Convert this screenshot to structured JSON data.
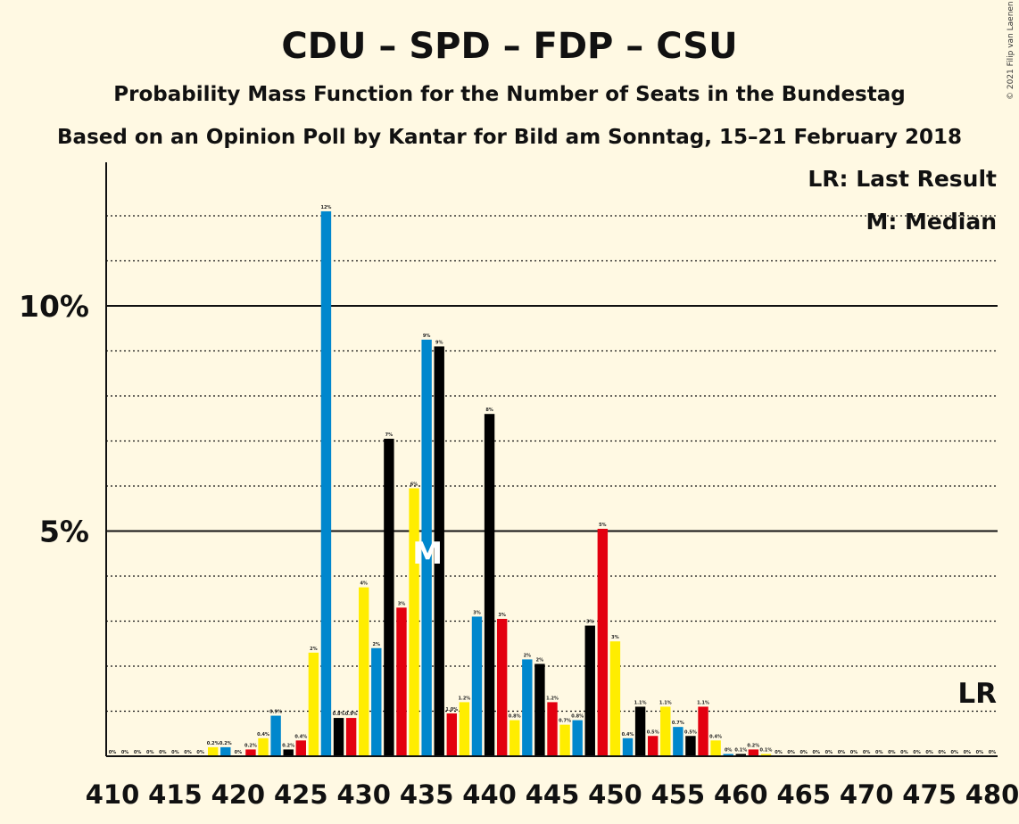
{
  "title": "CDU – SPD – FDP – CSU",
  "subtitle": "Probability Mass Function for the Number of Seats in the Bundestag",
  "subtitle2": "Based on an Opinion Poll by Kantar for Bild am Sonntag, 15–21 February 2018",
  "copyright": "© 2021 Filip van Laenen",
  "legend": {
    "lr": "LR: Last Result",
    "median": "M: Median"
  },
  "markers": {
    "median_label": "M",
    "lr_label": "LR",
    "median_seat": 435,
    "last_result_seat": 480
  },
  "colors": {
    "background": "#FFF9E3",
    "cdu": "#000000",
    "spd": "#E3000F",
    "fdp": "#FFED00",
    "csu": "#0087CD"
  },
  "chart_data": {
    "type": "bar",
    "xlabel": "",
    "ylabel": "",
    "xlim": [
      410,
      480
    ],
    "ylim": [
      0,
      13
    ],
    "grid": "dotted every 1%, solid at 5% and 10%",
    "yticks": [
      {
        "value": 5,
        "label": "5%"
      },
      {
        "value": 10,
        "label": "10%"
      }
    ],
    "xticks": [
      410,
      415,
      420,
      425,
      430,
      435,
      440,
      445,
      450,
      455,
      460,
      465,
      470,
      475,
      480
    ],
    "bars": [
      {
        "seat": 410,
        "value": 0,
        "label": "0%",
        "color": "#FFED00"
      },
      {
        "seat": 411,
        "value": 0,
        "label": "0%",
        "color": "#0087CD"
      },
      {
        "seat": 412,
        "value": 0,
        "label": "0%",
        "color": "#000000"
      },
      {
        "seat": 413,
        "value": 0,
        "label": "0%",
        "color": "#E3000F"
      },
      {
        "seat": 414,
        "value": 0,
        "label": "0%",
        "color": "#FFED00"
      },
      {
        "seat": 415,
        "value": 0,
        "label": "0%",
        "color": "#0087CD"
      },
      {
        "seat": 416,
        "value": 0,
        "label": "0%",
        "color": "#000000"
      },
      {
        "seat": 417,
        "value": 0,
        "label": "0%",
        "color": "#E3000F"
      },
      {
        "seat": 418,
        "value": 0.2,
        "label": "0.2%",
        "color": "#FFED00"
      },
      {
        "seat": 419,
        "value": 0.2,
        "label": "0.2%",
        "color": "#0087CD"
      },
      {
        "seat": 420,
        "value": 0,
        "label": "0%",
        "color": "#000000"
      },
      {
        "seat": 421,
        "value": 0.15,
        "label": "0.2%",
        "color": "#E3000F"
      },
      {
        "seat": 422,
        "value": 0.4,
        "label": "0.4%",
        "color": "#FFED00"
      },
      {
        "seat": 423,
        "value": 0.9,
        "label": "0.9%",
        "color": "#0087CD"
      },
      {
        "seat": 424,
        "value": 0.15,
        "label": "0.2%",
        "color": "#000000"
      },
      {
        "seat": 425,
        "value": 0.35,
        "label": "0.4%",
        "color": "#E3000F"
      },
      {
        "seat": 426,
        "value": 2.3,
        "label": "2%",
        "color": "#FFED00"
      },
      {
        "seat": 427,
        "value": 12.1,
        "label": "12%",
        "color": "#0087CD"
      },
      {
        "seat": 428,
        "value": 0.85,
        "label": "0.8%",
        "color": "#000000"
      },
      {
        "seat": 429,
        "value": 0.85,
        "label": "0.9%",
        "color": "#E3000F"
      },
      {
        "seat": 430,
        "value": 3.75,
        "label": "4%",
        "color": "#FFED00"
      },
      {
        "seat": 431,
        "value": 2.4,
        "label": "2%",
        "color": "#0087CD"
      },
      {
        "seat": 432,
        "value": 7.05,
        "label": "7%",
        "color": "#000000"
      },
      {
        "seat": 433,
        "value": 3.3,
        "label": "3%",
        "color": "#E3000F"
      },
      {
        "seat": 434,
        "value": 5.95,
        "label": "6%",
        "color": "#FFED00"
      },
      {
        "seat": 435,
        "value": 9.25,
        "label": "9%",
        "color": "#0087CD"
      },
      {
        "seat": 436,
        "value": 9.1,
        "label": "9%",
        "color": "#000000"
      },
      {
        "seat": 437,
        "value": 0.95,
        "label": "1.0%",
        "color": "#E3000F"
      },
      {
        "seat": 438,
        "value": 1.2,
        "label": "1.2%",
        "color": "#FFED00"
      },
      {
        "seat": 439,
        "value": 3.1,
        "label": "3%",
        "color": "#0087CD"
      },
      {
        "seat": 440,
        "value": 7.6,
        "label": "8%",
        "color": "#000000"
      },
      {
        "seat": 441,
        "value": 3.05,
        "label": "3%",
        "color": "#E3000F"
      },
      {
        "seat": 442,
        "value": 0.8,
        "label": "0.8%",
        "color": "#FFED00"
      },
      {
        "seat": 443,
        "value": 2.15,
        "label": "2%",
        "color": "#0087CD"
      },
      {
        "seat": 444,
        "value": 2.05,
        "label": "2%",
        "color": "#000000"
      },
      {
        "seat": 445,
        "value": 1.2,
        "label": "1.2%",
        "color": "#E3000F"
      },
      {
        "seat": 446,
        "value": 0.7,
        "label": "0.7%",
        "color": "#FFED00"
      },
      {
        "seat": 447,
        "value": 0.8,
        "label": "0.8%",
        "color": "#0087CD"
      },
      {
        "seat": 448,
        "value": 2.9,
        "label": "3%",
        "color": "#000000"
      },
      {
        "seat": 449,
        "value": 5.05,
        "label": "5%",
        "color": "#E3000F"
      },
      {
        "seat": 450,
        "value": 2.55,
        "label": "3%",
        "color": "#FFED00"
      },
      {
        "seat": 451,
        "value": 0.4,
        "label": "0.4%",
        "color": "#0087CD"
      },
      {
        "seat": 452,
        "value": 1.1,
        "label": "1.1%",
        "color": "#000000"
      },
      {
        "seat": 453,
        "value": 0.45,
        "label": "0.5%",
        "color": "#E3000F"
      },
      {
        "seat": 454,
        "value": 1.1,
        "label": "1.1%",
        "color": "#FFED00"
      },
      {
        "seat": 455,
        "value": 0.65,
        "label": "0.7%",
        "color": "#0087CD"
      },
      {
        "seat": 456,
        "value": 0.45,
        "label": "0.5%",
        "color": "#000000"
      },
      {
        "seat": 457,
        "value": 1.1,
        "label": "1.1%",
        "color": "#E3000F"
      },
      {
        "seat": 458,
        "value": 0.35,
        "label": "0.4%",
        "color": "#FFED00"
      },
      {
        "seat": 459,
        "value": 0.05,
        "label": "0%",
        "color": "#0087CD"
      },
      {
        "seat": 460,
        "value": 0.05,
        "label": "0.1%",
        "color": "#000000"
      },
      {
        "seat": 461,
        "value": 0.15,
        "label": "0.2%",
        "color": "#E3000F"
      },
      {
        "seat": 462,
        "value": 0.05,
        "label": "0.1%",
        "color": "#FFED00"
      },
      {
        "seat": 463,
        "value": 0,
        "label": "0%",
        "color": "#0087CD"
      },
      {
        "seat": 464,
        "value": 0,
        "label": "0%",
        "color": "#000000"
      },
      {
        "seat": 465,
        "value": 0,
        "label": "0%",
        "color": "#E3000F"
      },
      {
        "seat": 466,
        "value": 0,
        "label": "0%",
        "color": "#FFED00"
      },
      {
        "seat": 467,
        "value": 0,
        "label": "0%",
        "color": "#0087CD"
      },
      {
        "seat": 468,
        "value": 0,
        "label": "0%",
        "color": "#000000"
      },
      {
        "seat": 469,
        "value": 0,
        "label": "0%",
        "color": "#E3000F"
      },
      {
        "seat": 470,
        "value": 0,
        "label": "0%",
        "color": "#FFED00"
      },
      {
        "seat": 471,
        "value": 0,
        "label": "0%",
        "color": "#0087CD"
      },
      {
        "seat": 472,
        "value": 0,
        "label": "0%",
        "color": "#000000"
      },
      {
        "seat": 473,
        "value": 0,
        "label": "0%",
        "color": "#E3000F"
      },
      {
        "seat": 474,
        "value": 0,
        "label": "0%",
        "color": "#FFED00"
      },
      {
        "seat": 475,
        "value": 0,
        "label": "0%",
        "color": "#0087CD"
      },
      {
        "seat": 476,
        "value": 0,
        "label": "0%",
        "color": "#000000"
      },
      {
        "seat": 477,
        "value": 0,
        "label": "0%",
        "color": "#E3000F"
      },
      {
        "seat": 478,
        "value": 0,
        "label": "0%",
        "color": "#FFED00"
      },
      {
        "seat": 479,
        "value": 0,
        "label": "0%",
        "color": "#0087CD"
      },
      {
        "seat": 480,
        "value": 0,
        "label": "0%",
        "color": "#000000"
      }
    ]
  }
}
